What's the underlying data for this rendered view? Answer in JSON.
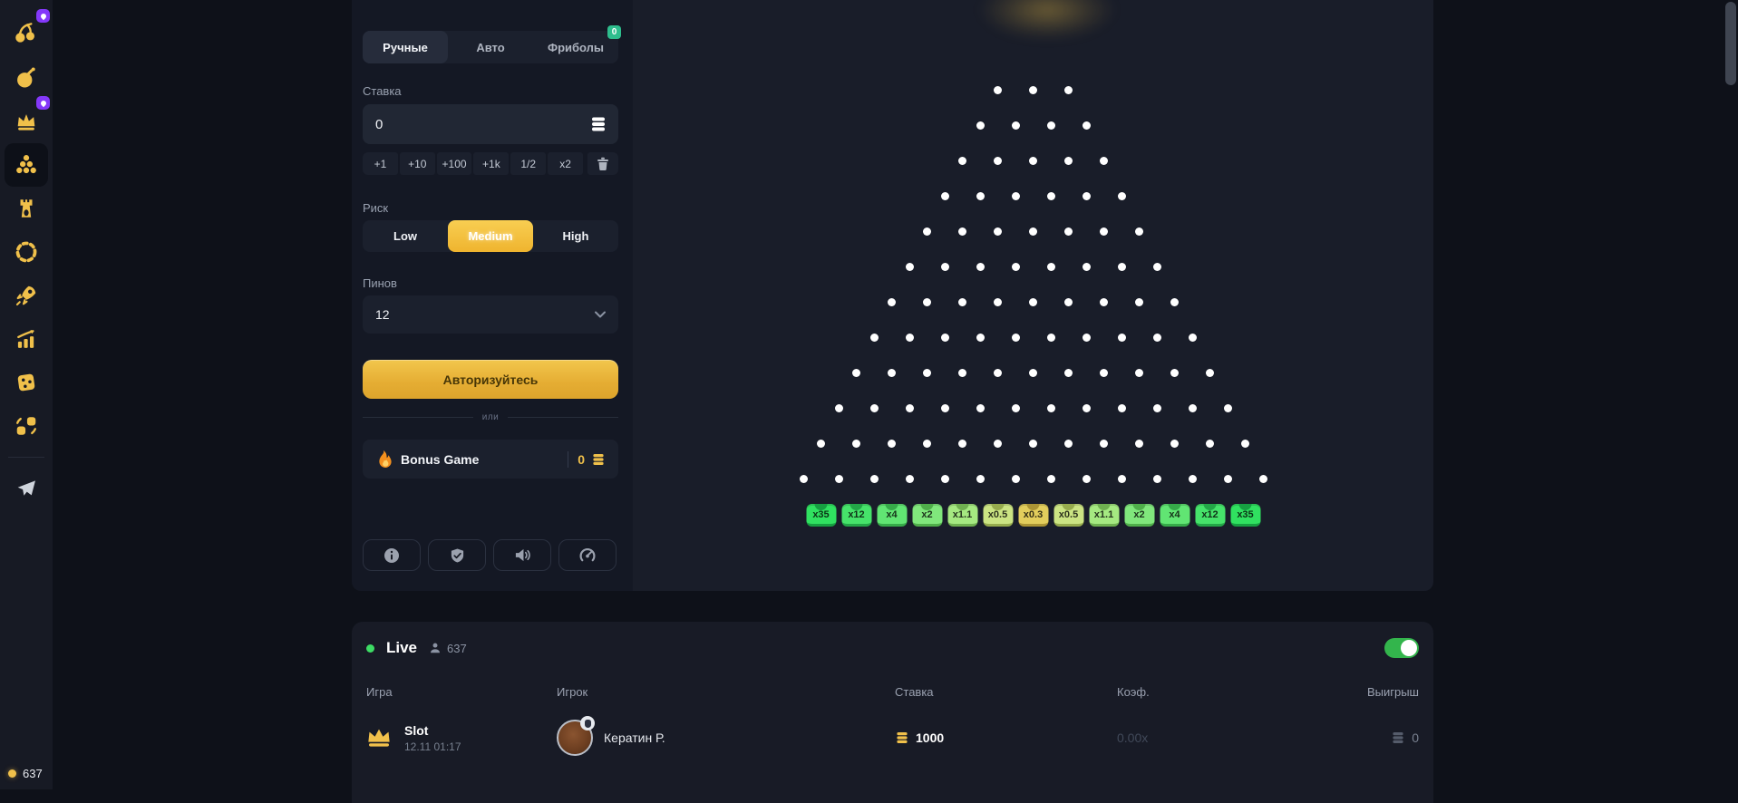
{
  "sidebar": {
    "icons": [
      "cherries",
      "bomb",
      "crown",
      "plinko",
      "tower",
      "wheel",
      "rocket",
      "chart-up",
      "dice",
      "coin-swap",
      "telegram"
    ],
    "selected_icon": "plinko",
    "online_count": "637"
  },
  "panel": {
    "tabs": [
      {
        "label": "Ручные",
        "active": true
      },
      {
        "label": "Авто",
        "active": false
      },
      {
        "label": "Фриболы",
        "active": false,
        "badge": "0"
      }
    ],
    "bet_label": "Ставка",
    "bet_value": "0",
    "quick_bets": [
      "+1",
      "+10",
      "+100",
      "+1k",
      "1/2",
      "x2"
    ],
    "risk_label": "Риск",
    "risk_options": [
      "Low",
      "Medium",
      "High"
    ],
    "risk_selected": "Medium",
    "pins_label": "Пинов",
    "pins_value": "12",
    "login_button": "Авторизуйтесь",
    "or_divider": "или",
    "bonus_label": "Bonus Game",
    "bonus_value": "0"
  },
  "board": {
    "peg_rows": 12,
    "multipliers": [
      {
        "label": "x35",
        "bg": "#30e160",
        "dark": "#169f41"
      },
      {
        "label": "x12",
        "bg": "#46e36a",
        "dark": "#23a647"
      },
      {
        "label": "x4",
        "bg": "#61e573",
        "dark": "#36aa49"
      },
      {
        "label": "x2",
        "bg": "#80e77c",
        "dark": "#4fae4a"
      },
      {
        "label": "x1.1",
        "bg": "#a5e981",
        "dark": "#6fb050"
      },
      {
        "label": "x0.5",
        "bg": "#cbe483",
        "dark": "#96ab4d"
      },
      {
        "label": "x0.3",
        "bg": "#e2cd5c",
        "dark": "#ab9434"
      },
      {
        "label": "x0.5",
        "bg": "#cbe483",
        "dark": "#96ab4d"
      },
      {
        "label": "x1.1",
        "bg": "#a5e981",
        "dark": "#6fb050"
      },
      {
        "label": "x2",
        "bg": "#80e77c",
        "dark": "#4fae4a"
      },
      {
        "label": "x4",
        "bg": "#61e573",
        "dark": "#36aa49"
      },
      {
        "label": "x12",
        "bg": "#46e36a",
        "dark": "#23a647"
      },
      {
        "label": "x35",
        "bg": "#30e160",
        "dark": "#169f41"
      }
    ]
  },
  "live": {
    "title": "Live",
    "count": "637",
    "toggle_on": true,
    "columns": [
      "Игра",
      "Игрок",
      "Ставка",
      "Коэф.",
      "Выигрыш"
    ],
    "rows": [
      {
        "game": "Slot",
        "time": "12.11 01:17",
        "player": "Кератин Р.",
        "bet": "1000",
        "coef": "0.00x",
        "win": "0"
      }
    ]
  },
  "colors": {
    "accent_gold": "#f0c04a",
    "badge_purple": "#8438fa",
    "badge_green": "#2ebd8d",
    "toggle_green": "#33b54c",
    "live_dot": "#3ddc64",
    "risk_active": "#f3c33b"
  }
}
